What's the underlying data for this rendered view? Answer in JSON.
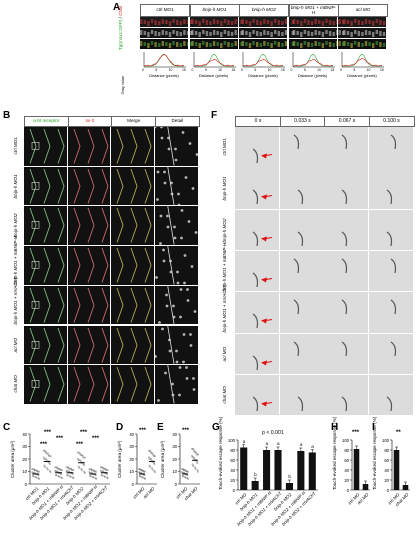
{
  "panels": {
    "A": "A",
    "B": "B",
    "C": "C",
    "D": "D",
    "E": "E",
    "F": "F",
    "G": "G",
    "H": "H",
    "I": "I"
  },
  "panelA": {
    "columns": [
      "ctrl MO1",
      "bnip-h MO1",
      "bnip-h MO2",
      "bnip-h MO1 + mBNIP-H",
      "acl MO"
    ],
    "row_green": "Tg(mnx1:GFP)",
    "row_red": "Chat",
    "xlabel": "Distance (pixels)",
    "ylabel": "Gray value",
    "plot_ticks": [
      "0",
      "5",
      "10",
      "15"
    ]
  },
  "panelB": {
    "col_headers": [
      "α-bt receptor",
      "sv-2",
      "Merge",
      "Detail"
    ],
    "rows": [
      "ctrl MO1",
      "bnip-h MO1",
      "bnip-h MO2",
      "bnip-h MO1 + mBNIP-H",
      "bnip-h MO1 + mVAChT",
      "acl MO",
      "chat MO"
    ]
  },
  "panelF": {
    "times": [
      "0 s",
      "0.033 s",
      "0.067 s",
      "0.100 s"
    ],
    "rows": [
      "ctrl MO1",
      "bnip-h MO1",
      "bnip-h MO2",
      "bnip-h MO1 + mBNIP-H",
      "bnip-h MO1 + mVAChT",
      "acl MO",
      "chat MO"
    ]
  },
  "panelC": {
    "ylabel": "Cluster area (μm²)",
    "yticks": [
      "0",
      "10",
      "20",
      "30",
      "40"
    ],
    "categories": [
      "ctrl MO1",
      "bnip-h MO1",
      "bnip-h MO1 + mBNIP-H",
      "bnip-h MO1 + mVAChT",
      "bnip-h MO2",
      "bnip-h MO2 + mBNIP-H",
      "bnip-h MO2 + mVAChT"
    ],
    "stars": [
      "***",
      "***",
      "***",
      "***",
      "***",
      "***"
    ]
  },
  "panelD": {
    "ylabel": "Cluster area (μm²)",
    "yticks": [
      "0",
      "10",
      "20",
      "30",
      "40"
    ],
    "categories": [
      "ctrl MO",
      "acl MO"
    ],
    "stars": "***"
  },
  "panelE": {
    "ylabel": "Cluster area (μm²)",
    "yticks": [
      "0",
      "10",
      "20",
      "30",
      "40"
    ],
    "categories": [
      "ctrl MO",
      "chat MO"
    ],
    "stars": "***"
  },
  "panelG": {
    "ylabel": "Touch-evoked escape response (%)",
    "yticks": [
      "0",
      "20",
      "40",
      "60",
      "80",
      "100"
    ],
    "pvalue": "p < 0.001",
    "categories": [
      "ctrl MO",
      "bnip-h MO1",
      "bnip-h MO1 + mBNIP-H",
      "bnip-h MO1 + mVAChT",
      "bnip-h MO2",
      "bnip-h MO2 + mBNIP-H",
      "bnip-h MO2 + mVAChT"
    ],
    "letters": [
      "a",
      "b",
      "a",
      "a",
      "b",
      "a",
      "a"
    ]
  },
  "panelH": {
    "ylabel": "Touch-evoked escape response (%)",
    "yticks": [
      "0",
      "20",
      "40",
      "60",
      "80",
      "100"
    ],
    "categories": [
      "ctrl MO",
      "acl MO"
    ],
    "stars": "***"
  },
  "panelI": {
    "ylabel": "Touch-evoked escape response (%)",
    "yticks": [
      "0",
      "20",
      "40",
      "60",
      "80",
      "100"
    ],
    "categories": [
      "ctrl MO",
      "chat MO"
    ],
    "stars": "**"
  },
  "chart_data": [
    {
      "type": "scatter",
      "panel": "C",
      "categories": [
        "ctrl MO1",
        "bnip-h MO1",
        "bnip-h MO1 + mBNIP-H",
        "bnip-h MO1 + mVAChT",
        "bnip-h MO2",
        "bnip-h MO2 + mBNIP-H",
        "bnip-h MO2 + mVAChT"
      ],
      "values": [
        8,
        18,
        9,
        9,
        17,
        8,
        9
      ],
      "ylim": [
        0,
        40
      ]
    },
    {
      "type": "scatter",
      "panel": "D",
      "categories": [
        "ctrl MO",
        "acl MO"
      ],
      "values": [
        8,
        18
      ],
      "ylim": [
        0,
        40
      ]
    },
    {
      "type": "scatter",
      "panel": "E",
      "categories": [
        "ctrl MO",
        "chat MO"
      ],
      "values": [
        8,
        19
      ],
      "ylim": [
        0,
        40
      ]
    },
    {
      "type": "bar",
      "panel": "G",
      "categories": [
        "ctrl MO",
        "bnip-h MO1",
        "bnip-h MO1 + mBNIP-H",
        "bnip-h MO1 + mVAChT",
        "bnip-h MO2",
        "bnip-h MO2 + mBNIP-H",
        "bnip-h MO2 + mVAChT"
      ],
      "values": [
        85,
        18,
        80,
        80,
        14,
        78,
        75
      ],
      "ylim": [
        0,
        100
      ]
    },
    {
      "type": "bar",
      "panel": "H",
      "categories": [
        "ctrl MO",
        "acl MO"
      ],
      "values": [
        82,
        12
      ],
      "ylim": [
        0,
        100
      ]
    },
    {
      "type": "bar",
      "panel": "I",
      "categories": [
        "ctrl MO",
        "chat MO"
      ],
      "values": [
        80,
        10
      ],
      "ylim": [
        0,
        100
      ]
    }
  ]
}
